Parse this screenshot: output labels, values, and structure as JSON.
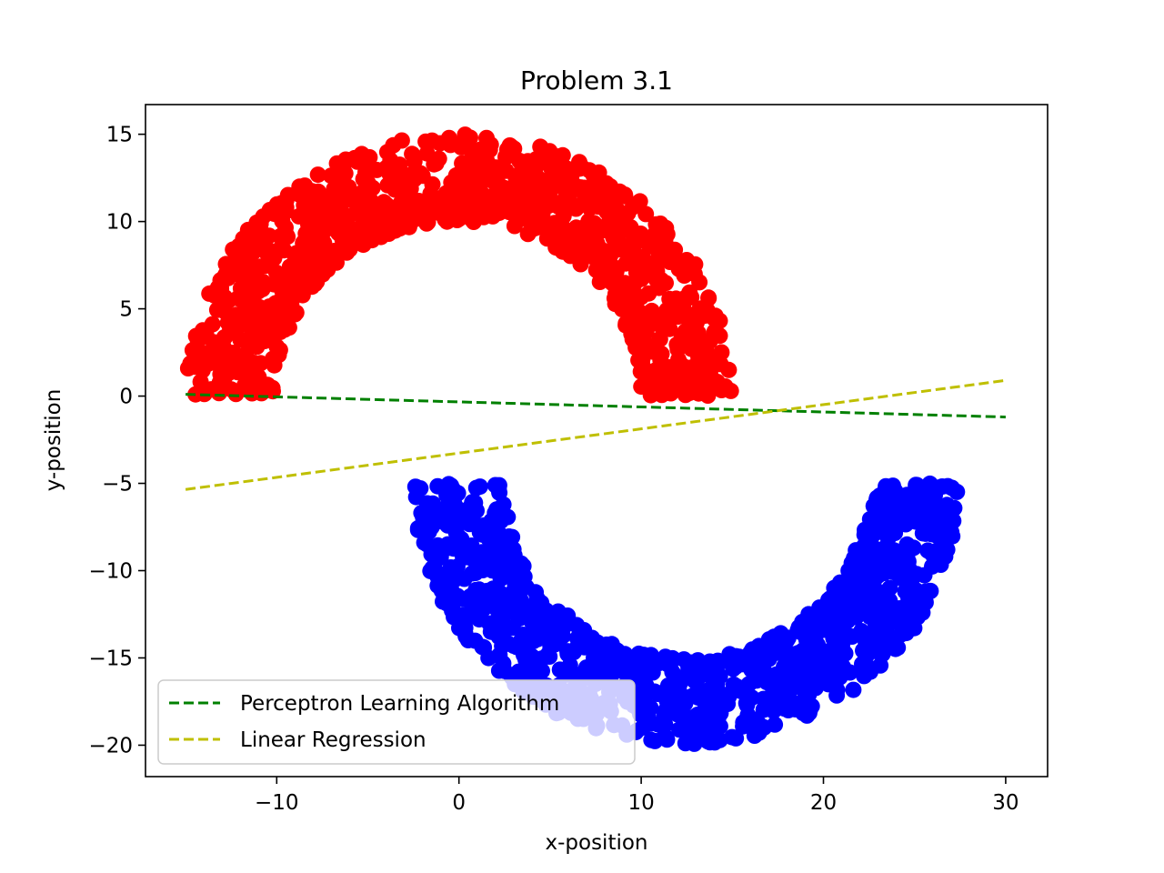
{
  "chart_data": {
    "type": "scatter",
    "title": "Problem 3.1",
    "xlabel": "x-position",
    "ylabel": "y-position",
    "xlim": [
      -17.2,
      32.3
    ],
    "ylim": [
      -21.8,
      16.7
    ],
    "xticks": [
      -10,
      0,
      10,
      20,
      30
    ],
    "yticks": [
      -20,
      -15,
      -10,
      -5,
      0,
      5,
      10,
      15
    ],
    "grid": false,
    "legend_position": "lower-left",
    "series": [
      {
        "kind": "scatter",
        "color": "#ff0000",
        "ring": {
          "cx": 0,
          "cy": 0,
          "r_inner": 10,
          "r_outer": 15,
          "angle_range_deg": [
            0,
            180
          ]
        }
      },
      {
        "kind": "scatter",
        "color": "#0000ff",
        "ring": {
          "cx": 12.5,
          "cy": -5,
          "r_inner": 10,
          "r_outer": 15,
          "angle_range_deg": [
            180,
            360
          ]
        }
      },
      {
        "kind": "line",
        "name": "Perceptron Learning Algorithm",
        "color": "#008000",
        "dashed": true,
        "x": [
          -15,
          30
        ],
        "y": [
          0.1,
          -1.2
        ]
      },
      {
        "kind": "line",
        "name": "Linear Regression",
        "color": "#bfbf00",
        "dashed": true,
        "x": [
          -15,
          30
        ],
        "y": [
          -5.35,
          0.9
        ]
      }
    ]
  }
}
